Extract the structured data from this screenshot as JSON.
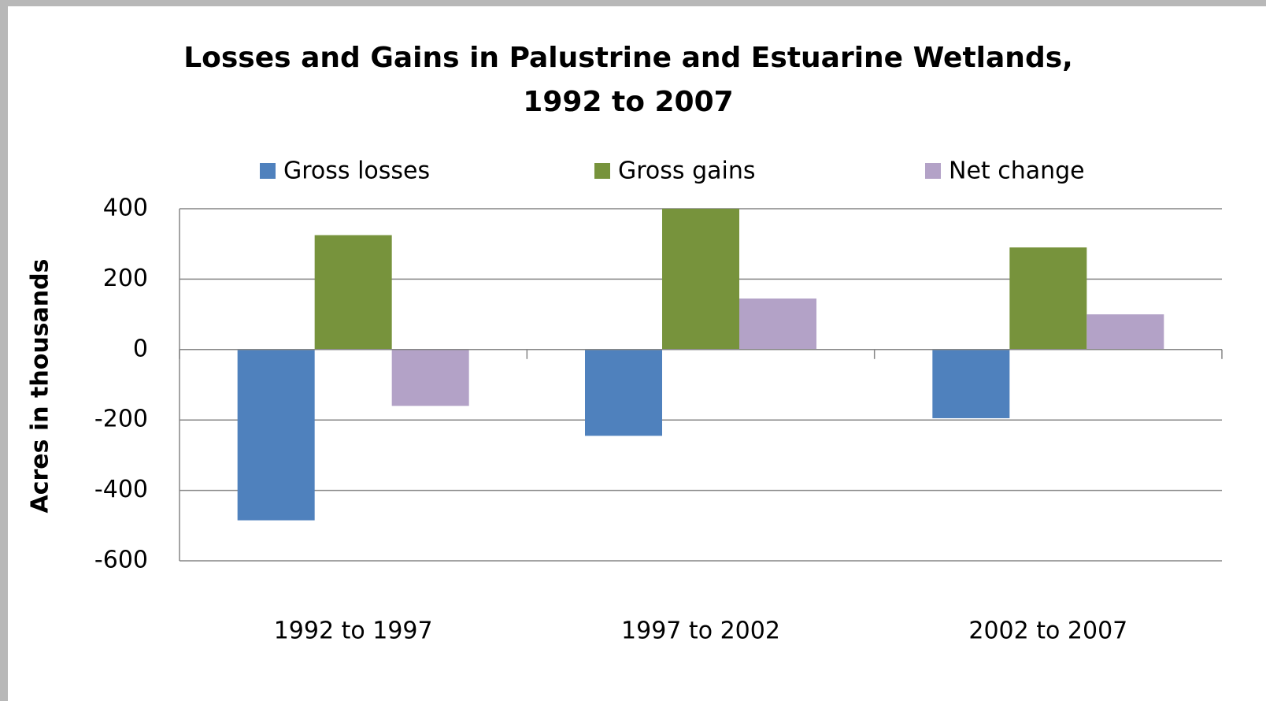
{
  "chart_data": {
    "type": "bar",
    "title": [
      "Losses and Gains in Palustrine and Estuarine Wetlands,",
      "1992 to 2007"
    ],
    "y_label": "Acres in thousands",
    "categories": [
      "1992 to 1997",
      "1997 to 2002",
      "2002 to 2007"
    ],
    "series": [
      {
        "name": "Gross losses",
        "color": "#4f81bd",
        "values": [
          -485,
          -245,
          -195
        ]
      },
      {
        "name": "Gross gains",
        "color": "#77933c",
        "values": [
          325,
          400,
          290
        ]
      },
      {
        "name": "Net change",
        "color": "#b3a2c7",
        "values": [
          -160,
          145,
          100
        ]
      }
    ],
    "ylim": [
      -600,
      400
    ],
    "yticks": [
      -600,
      -400,
      -200,
      0,
      200,
      400
    ],
    "grid": true,
    "legend": "top"
  }
}
